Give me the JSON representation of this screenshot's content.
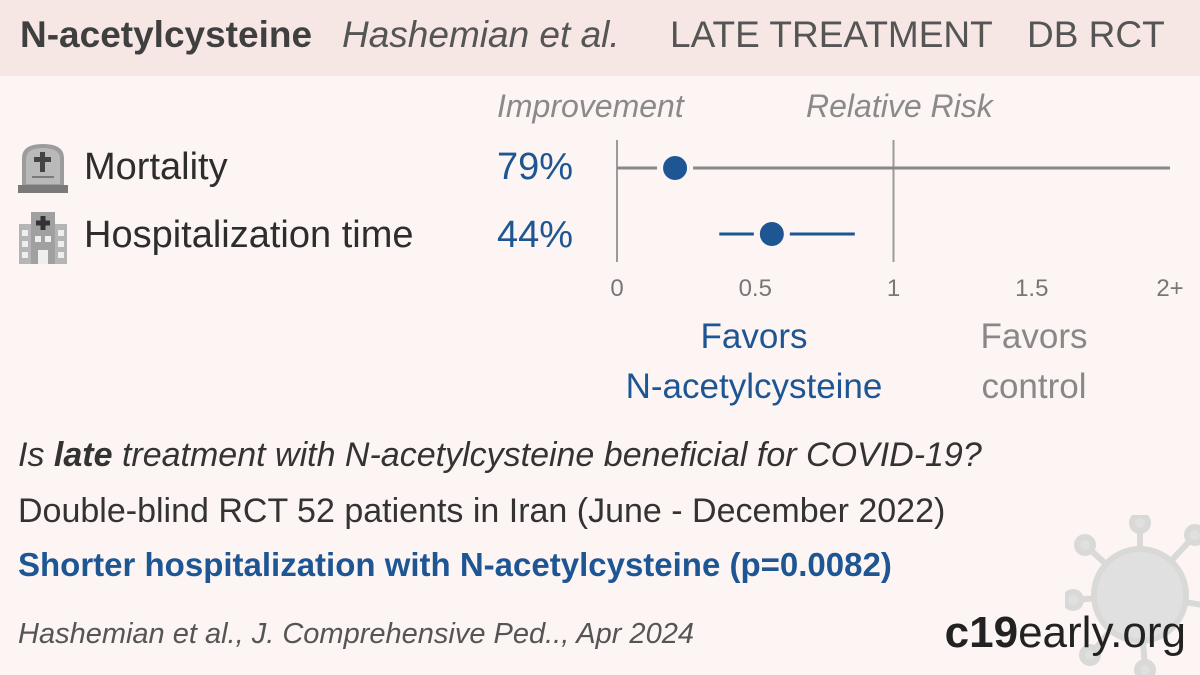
{
  "header": {
    "drug": "N-acetylcysteine",
    "authors": "Hashemian et al.",
    "stage": "LATE TREATMENT",
    "design": "DB RCT"
  },
  "columns": {
    "improvement": "Improvement",
    "relative_risk": "Relative Risk"
  },
  "chart_data": {
    "type": "scatter",
    "subtype": "forest-plot",
    "categories": [
      "Mortality",
      "Hospitalization time"
    ],
    "improvement_labels": [
      "79%",
      "44%"
    ],
    "series": [
      {
        "values": [
          0.21,
          0.56
        ],
        "ci_low": [
          0.0,
          0.37
        ],
        "ci_high": [
          2.0,
          0.86
        ]
      }
    ],
    "xlim": [
      0,
      2
    ],
    "x_ticks": [
      0,
      0.5,
      1,
      1.5,
      2
    ],
    "x_tick_labels": [
      "0",
      "0.5",
      "1",
      "1.5",
      "2+"
    ],
    "reference_line": 1,
    "favors_left": [
      "Favors",
      "N-acetylcysteine"
    ],
    "favors_right": [
      "Favors",
      "control"
    ],
    "colors": {
      "point": "#1e5593",
      "axis": "#9a9a9a",
      "ci_overflow": "#888888"
    }
  },
  "icons": [
    "tombstone-icon",
    "hospital-icon",
    "virus-icon"
  ],
  "summary": {
    "question_pre": "Is ",
    "question_bold": "late",
    "question_post": " treatment with N-acetylcysteine beneficial for COVID-19?",
    "description": "Double-blind RCT 52 patients in Iran (June - December 2022)",
    "conclusion": "Shorter hospitalization with N-acetylcysteine (p=0.0082)"
  },
  "citation": "Hashemian et al., J. Comprehensive Ped.., Apr 2024",
  "brand": {
    "bold": "c19",
    "rest": "early.org"
  }
}
